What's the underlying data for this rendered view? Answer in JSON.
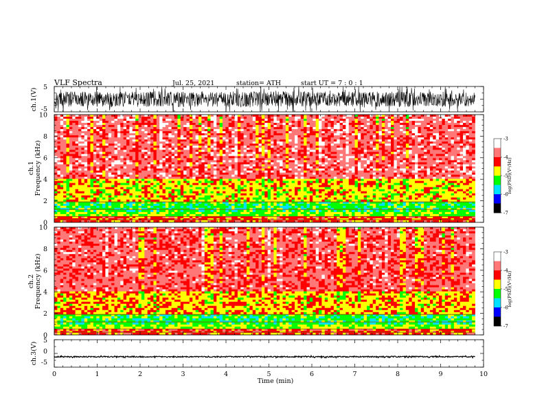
{
  "header": {
    "title": "VLF  Spectra",
    "date": "Jul.  25, 2021",
    "station": "station= ATH",
    "start": "start  UT  =    7  : 0   : 1"
  },
  "colors": {
    "colormap": [
      "#000000",
      "#0000ff",
      "#00e0ff",
      "#00ff00",
      "#ffff00",
      "#ff0000",
      "#ff7777",
      "#ffffff"
    ],
    "axis": "#000000",
    "trace": "#000000"
  },
  "chart_data": [
    {
      "type": "line",
      "name": "ch1-waveform",
      "ylabel": "ch.1(V)",
      "ylim": [
        -5,
        5
      ],
      "yticks": [
        "5",
        "-5"
      ],
      "xlim": [
        0,
        10
      ],
      "description_values": {
        "baseline_v": 0,
        "noise_amplitude_v": 3
      }
    },
    {
      "type": "heatmap",
      "name": "ch1-spectrogram",
      "ylabel_line1": "ch.1",
      "ylabel_line2": "Frequency  (kHz)",
      "ylim": [
        0,
        10
      ],
      "yticks": [
        "0",
        "2",
        "4",
        "6",
        "8",
        "10"
      ],
      "xlim": [
        0,
        9.8
      ],
      "level_by_band": [
        {
          "freq_khz": [
            0,
            0.5
          ],
          "log_psd": -4.3
        },
        {
          "freq_khz": [
            0.5,
            1.0
          ],
          "log_psd": -5.0
        },
        {
          "freq_khz": [
            1.0,
            2.0
          ],
          "log_psd": -5.3
        },
        {
          "freq_khz": [
            2.0,
            4.0
          ],
          "log_psd": -4.7
        },
        {
          "freq_khz": [
            4.0,
            10.0
          ],
          "log_psd": -3.8
        }
      ]
    },
    {
      "type": "heatmap",
      "name": "ch2-spectrogram",
      "ylabel_line1": "ch.2",
      "ylabel_line2": "Frequency  (kHz)",
      "ylim": [
        0,
        10
      ],
      "yticks": [
        "0",
        "2",
        "4",
        "6",
        "8",
        "10"
      ],
      "xlim": [
        0,
        9.8
      ],
      "level_by_band": [
        {
          "freq_khz": [
            0,
            0.5
          ],
          "log_psd": -4.3
        },
        {
          "freq_khz": [
            0.5,
            1.0
          ],
          "log_psd": -5.0
        },
        {
          "freq_khz": [
            1.0,
            2.0
          ],
          "log_psd": -5.3
        },
        {
          "freq_khz": [
            2.0,
            4.0
          ],
          "log_psd": -4.6
        },
        {
          "freq_khz": [
            4.0,
            10.0
          ],
          "log_psd": -3.9
        }
      ]
    },
    {
      "type": "line",
      "name": "ch3-waveform",
      "ylabel": "ch.3(V)",
      "ylim": [
        -5,
        5
      ],
      "yticks": [
        "5",
        "0",
        "-5"
      ],
      "xlim": [
        0,
        10
      ],
      "description_values": {
        "baseline_v": -1.2,
        "noise_amplitude_v": 0.2
      }
    }
  ],
  "xaxis": {
    "label": "Time  (min)",
    "ticks": [
      "0",
      "1",
      "2",
      "3",
      "4",
      "5",
      "6",
      "7",
      "8",
      "9",
      "10"
    ],
    "range": [
      0,
      10
    ]
  },
  "colorbar": {
    "label": "log(PSD)(V²/Hz)",
    "ticks": [
      "-3",
      "-4",
      "-5",
      "-6",
      "-7"
    ],
    "range": [
      -7,
      -3
    ]
  }
}
